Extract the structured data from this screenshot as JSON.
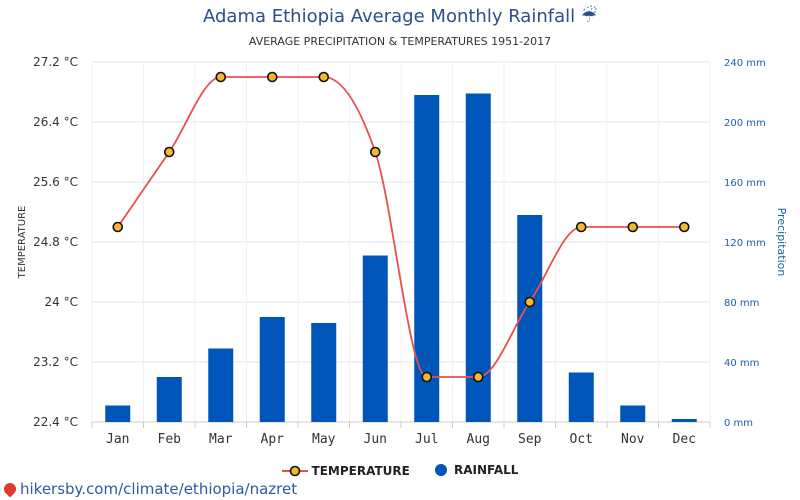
{
  "header": {
    "title": "Adama Ethiopia Average Monthly Rainfall",
    "title_icon": "☔",
    "subtitle": "AVERAGE PRECIPITATION & TEMPERATURES 1951-2017"
  },
  "footer": {
    "link_text": "hikersby.com/climate/ethiopia/nazret"
  },
  "colors": {
    "temperature_line": "#e8504e",
    "marker_fill": "#f5b731",
    "rainfall_bar": "#0055b8",
    "left_axis_text": "#333333",
    "right_axis_text": "#1f5fa8"
  },
  "chart_data": {
    "type": "bar",
    "title": "Adama Ethiopia Average Monthly Rainfall",
    "subtitle": "AVERAGE PRECIPITATION & TEMPERATURES 1951-2017",
    "categories": [
      "Jan",
      "Feb",
      "Mar",
      "Apr",
      "May",
      "Jun",
      "Jul",
      "Aug",
      "Sep",
      "Oct",
      "Nov",
      "Dec"
    ],
    "left_axis": {
      "label": "TEMPERATURE",
      "ticks": [
        "22.4 °C",
        "23.2 °C",
        "24 °C",
        "24.8 °C",
        "25.6 °C",
        "26.4 °C",
        "27.2 °C"
      ],
      "range": [
        22.4,
        27.2
      ]
    },
    "right_axis": {
      "label": "Precipitation",
      "ticks": [
        "0 mm",
        "40 mm",
        "80 mm",
        "120 mm",
        "160 mm",
        "200 mm",
        "240 mm"
      ],
      "range": [
        0,
        240
      ]
    },
    "series": [
      {
        "name": "TEMPERATURE",
        "kind": "line",
        "axis": "left",
        "values": [
          25,
          26,
          27,
          27,
          27,
          26,
          23,
          23,
          24,
          25,
          25,
          25
        ]
      },
      {
        "name": "RAINFALL",
        "kind": "bar",
        "axis": "right",
        "values": [
          11,
          30,
          49,
          70,
          66,
          111,
          218,
          219,
          138,
          33,
          11,
          2
        ]
      }
    ],
    "legend": [
      "TEMPERATURE",
      "RAINFALL"
    ],
    "legend_position": "bottom",
    "grid": true
  }
}
